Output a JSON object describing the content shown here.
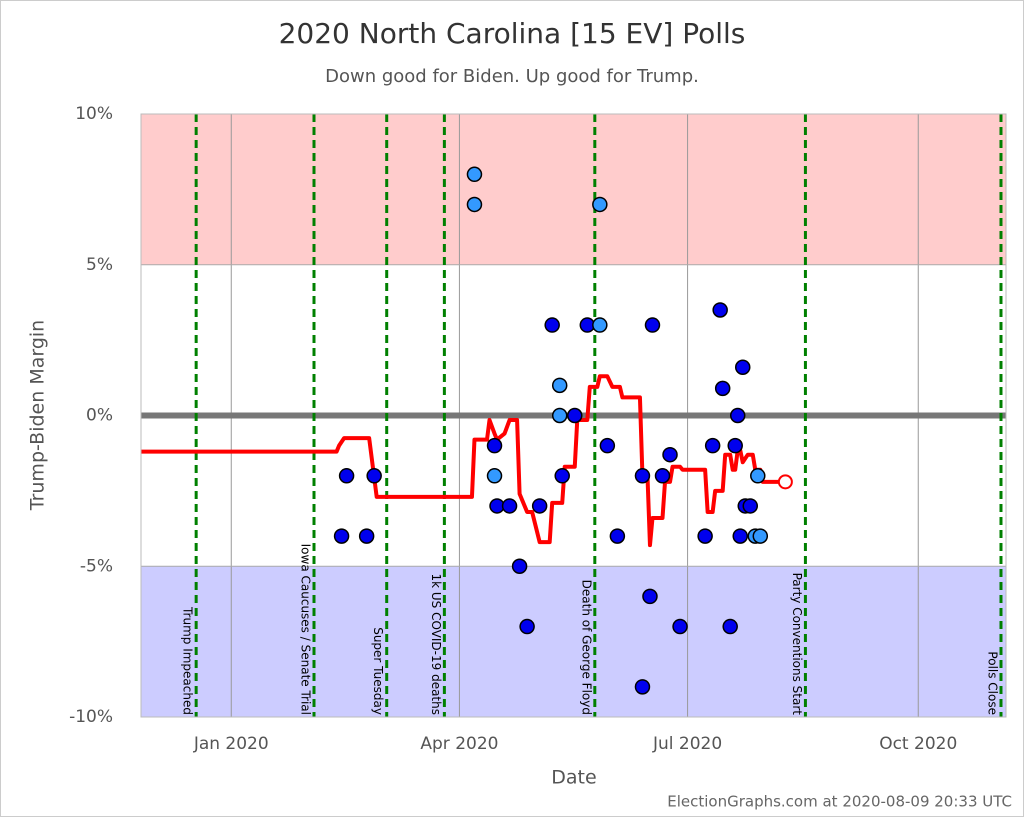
{
  "chart_data": {
    "type": "scatter",
    "title": "2020 North Carolina [15 EV] Polls",
    "subtitle": "Down good for Biden. Up good for Trump.",
    "x_label": "Date",
    "y_label": "Trump-Biden Margin",
    "credit": "ElectionGraphs.com at 2020-08-09 20:33 UTC",
    "xlim": [
      "2019-11-26",
      "2020-11-05"
    ],
    "ylim": [
      -10,
      10
    ],
    "xticks": [
      {
        "value": "2020-01-01",
        "label": "Jan 2020"
      },
      {
        "value": "2020-04-01",
        "label": "Apr 2020"
      },
      {
        "value": "2020-07-01",
        "label": "Jul 2020"
      },
      {
        "value": "2020-10-01",
        "label": "Oct 2020"
      }
    ],
    "yticks": [
      {
        "value": 10,
        "label": "10%"
      },
      {
        "value": 5,
        "label": "5%"
      },
      {
        "value": 0,
        "label": "0%"
      },
      {
        "value": -5,
        "label": "-5%"
      },
      {
        "value": -10,
        "label": "-10%"
      }
    ],
    "grid": true,
    "bands": [
      {
        "range": [
          5,
          10
        ],
        "color": "#ffcccc"
      },
      {
        "range": [
          -10,
          -5
        ],
        "color": "#ccccff"
      }
    ],
    "event_color": "#008000",
    "events": [
      {
        "x": "2019-12-18",
        "label": "Trump Impeached"
      },
      {
        "x": "2020-02-03",
        "label": "Iowa Caucuses / Senate Trial"
      },
      {
        "x": "2020-03-03",
        "label": "Super Tuesday"
      },
      {
        "x": "2020-03-26",
        "label": "1k US COVID-19 deaths"
      },
      {
        "x": "2020-05-25",
        "label": "Death of George Floyd"
      },
      {
        "x": "2020-08-17",
        "label": "Party Conventions Start"
      },
      {
        "x": "2020-11-03",
        "label": "Polls Close"
      }
    ],
    "series": [
      {
        "color": "#0000ee",
        "x": [
          "2020-02-14",
          "2020-02-16",
          "2020-02-24",
          "2020-02-27",
          "2020-04-15",
          "2020-04-16",
          "2020-04-21",
          "2020-04-25",
          "2020-04-28",
          "2020-05-03",
          "2020-05-08",
          "2020-05-12",
          "2020-05-17",
          "2020-05-22",
          "2020-05-30",
          "2020-06-03",
          "2020-06-13",
          "2020-06-13",
          "2020-06-16",
          "2020-06-17",
          "2020-06-21",
          "2020-06-24",
          "2020-06-28",
          "2020-07-08",
          "2020-07-11",
          "2020-07-14",
          "2020-07-15",
          "2020-07-18",
          "2020-07-20",
          "2020-07-21",
          "2020-07-22",
          "2020-07-23",
          "2020-07-24",
          "2020-07-26"
        ],
        "values": [
          -4,
          -2,
          -4,
          -2,
          -1,
          -3,
          -3,
          -5,
          -7,
          -3,
          3,
          -2,
          0,
          3,
          -1,
          -4,
          -2,
          -9,
          -6,
          3,
          -2,
          -1.3,
          -7,
          -4,
          -1,
          3.5,
          0.9,
          -7,
          -1,
          0,
          -4,
          1.6,
          -3,
          -3
        ]
      },
      {
        "color": "#3399ff",
        "x": [
          "2020-04-07",
          "2020-04-07",
          "2020-04-15",
          "2020-05-11",
          "2020-05-11",
          "2020-05-27",
          "2020-05-27",
          "2020-07-28",
          "2020-07-29",
          "2020-07-30"
        ],
        "values": [
          8,
          7,
          -2,
          1,
          0,
          7,
          3,
          -4,
          -2,
          -4
        ]
      }
    ],
    "average": {
      "color": "#ff0000",
      "x": [
        "2019-11-26",
        "2020-02-12",
        "2020-02-13",
        "2020-02-15",
        "2020-02-25",
        "2020-02-28",
        "2020-04-06",
        "2020-04-07",
        "2020-04-12",
        "2020-04-13",
        "2020-04-15",
        "2020-04-16",
        "2020-04-19",
        "2020-04-21",
        "2020-04-24",
        "2020-04-25",
        "2020-04-28",
        "2020-04-30",
        "2020-05-03",
        "2020-05-07",
        "2020-05-08",
        "2020-05-12",
        "2020-05-13",
        "2020-05-17",
        "2020-05-18",
        "2020-05-22",
        "2020-05-23",
        "2020-05-26",
        "2020-05-27",
        "2020-05-30",
        "2020-06-01",
        "2020-06-04",
        "2020-06-05",
        "2020-06-12",
        "2020-06-13",
        "2020-06-15",
        "2020-06-16",
        "2020-06-17",
        "2020-06-21",
        "2020-06-22",
        "2020-06-24",
        "2020-06-25",
        "2020-06-28",
        "2020-06-29",
        "2020-07-08",
        "2020-07-09",
        "2020-07-11",
        "2020-07-12",
        "2020-07-15",
        "2020-07-16",
        "2020-07-18",
        "2020-07-19",
        "2020-07-20",
        "2020-07-21",
        "2020-07-22",
        "2020-07-23",
        "2020-07-25",
        "2020-07-27",
        "2020-07-28",
        "2020-07-30",
        "2020-07-31",
        "2020-08-07"
      ],
      "values": [
        -1.2,
        -1.2,
        -1,
        -0.75,
        -0.75,
        -2.7,
        -2.7,
        -0.8,
        -0.8,
        -0.15,
        -0.6,
        -0.8,
        -0.6,
        -0.15,
        -0.15,
        -2.6,
        -3.2,
        -3.2,
        -4.2,
        -4.2,
        -2.9,
        -2.9,
        -1.7,
        -1.7,
        -0.15,
        -0.15,
        0.95,
        0.95,
        1.3,
        1.3,
        0.95,
        0.95,
        0.6,
        0.6,
        -2,
        -2,
        -4.3,
        -3.4,
        -3.4,
        -2.2,
        -2.2,
        -1.7,
        -1.7,
        -1.8,
        -1.8,
        -3.2,
        -3.2,
        -2.5,
        -2.5,
        -1.3,
        -1.3,
        -1.8,
        -1.8,
        -1.15,
        -1.15,
        -1.55,
        -1.3,
        -1.3,
        -1.8,
        -1.8,
        -2.2,
        -2.2
      ]
    },
    "average_marker": {
      "x": "2020-08-09",
      "value": -2.2
    }
  }
}
